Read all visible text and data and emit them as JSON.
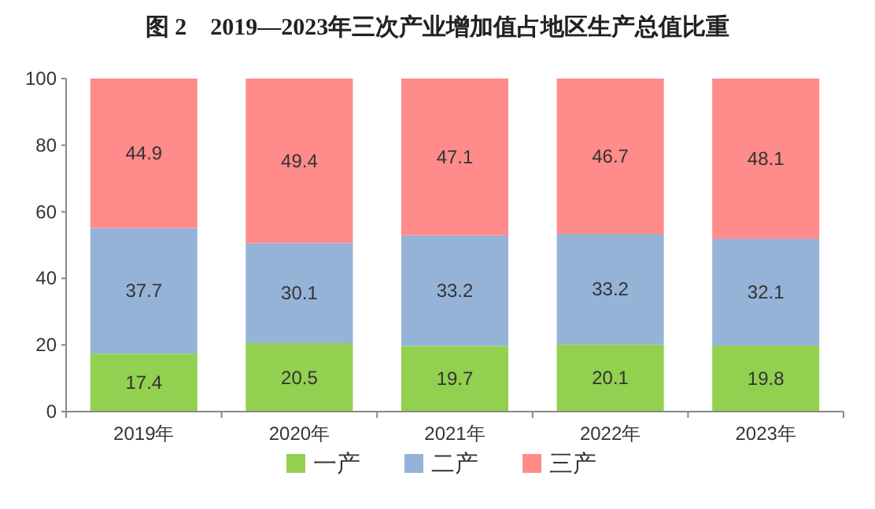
{
  "chart_data": {
    "type": "bar",
    "title": "图 2　2019—2023年三次产业增加值占地区生产总值比重",
    "categories": [
      "2019年",
      "2020年",
      "2021年",
      "2022年",
      "2023年"
    ],
    "series": [
      {
        "name": "一产",
        "color": "#92d050",
        "values": [
          17.4,
          20.5,
          19.7,
          20.1,
          19.8
        ]
      },
      {
        "name": "二产",
        "color": "#95b3d7",
        "values": [
          37.7,
          30.1,
          33.2,
          33.2,
          32.1
        ]
      },
      {
        "name": "三产",
        "color": "#ff8b8b",
        "values": [
          44.9,
          49.4,
          47.1,
          46.7,
          48.1
        ]
      }
    ],
    "stacked": true,
    "ylim": [
      0,
      100
    ],
    "yticks": [
      0,
      20,
      40,
      60,
      80,
      100
    ],
    "data_labels": true,
    "legend": "bottom"
  }
}
